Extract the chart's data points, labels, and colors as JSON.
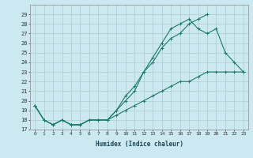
{
  "xlabel": "Humidex (Indice chaleur)",
  "bg_color": "#cce8f0",
  "line_color": "#1a7a6a",
  "grid_color": "#aacccc",
  "xlim": [
    -0.5,
    23.5
  ],
  "ylim": [
    17,
    30
  ],
  "yticks": [
    17,
    18,
    19,
    20,
    21,
    22,
    23,
    24,
    25,
    26,
    27,
    28,
    29
  ],
  "xticks": [
    0,
    1,
    2,
    3,
    4,
    5,
    6,
    7,
    8,
    9,
    10,
    11,
    12,
    13,
    14,
    15,
    16,
    17,
    18,
    19,
    20,
    21,
    22,
    23
  ],
  "series": [
    {
      "x": [
        0,
        1,
        2,
        3,
        4,
        5,
        6,
        7,
        8,
        9,
        10,
        11,
        12,
        13,
        14,
        15,
        16,
        17,
        18,
        19
      ],
      "y": [
        19.5,
        18.0,
        17.5,
        18.0,
        17.5,
        17.5,
        18.0,
        18.0,
        18.0,
        19.0,
        20.0,
        21.0,
        23.0,
        24.0,
        25.5,
        26.5,
        27.0,
        28.0,
        28.5,
        29.0
      ]
    },
    {
      "x": [
        0,
        1,
        2,
        3,
        4,
        5,
        6,
        7,
        8,
        9,
        10,
        11,
        12,
        13,
        14,
        15,
        16,
        17,
        18,
        19,
        20,
        21,
        22,
        23
      ],
      "y": [
        19.5,
        18.0,
        17.5,
        18.0,
        17.5,
        17.5,
        18.0,
        18.0,
        18.0,
        19.0,
        20.5,
        21.5,
        23.0,
        24.5,
        26.0,
        27.5,
        28.0,
        28.5,
        27.5,
        27.0,
        27.5,
        25.0,
        24.0,
        23.0
      ]
    },
    {
      "x": [
        0,
        1,
        2,
        3,
        4,
        5,
        6,
        7,
        8,
        9,
        10,
        11,
        12,
        13,
        14,
        15,
        16,
        17,
        18,
        19,
        20,
        21,
        22,
        23
      ],
      "y": [
        19.5,
        18.0,
        17.5,
        18.0,
        17.5,
        17.5,
        18.0,
        18.0,
        18.0,
        18.5,
        19.0,
        19.5,
        20.0,
        20.5,
        21.0,
        21.5,
        22.0,
        22.0,
        22.5,
        23.0,
        23.0,
        23.0,
        23.0,
        23.0
      ]
    }
  ]
}
